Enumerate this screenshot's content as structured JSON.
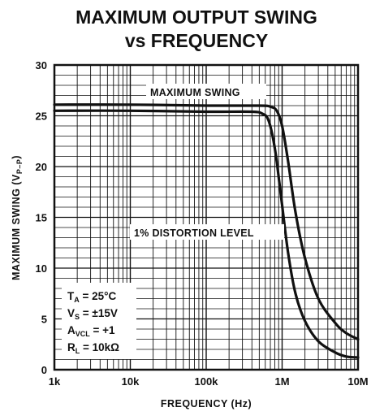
{
  "chart_data": {
    "type": "line",
    "title_line1": "MAXIMUM OUTPUT SWING",
    "title_line2": "vs FREQUENCY",
    "xlabel": "FREQUENCY (Hz)",
    "ylabel_main": "MAXIMUM SWING (V",
    "ylabel_sub": "P–P",
    "ylabel_close": ")",
    "x_scale": "log",
    "xlim": [
      1000,
      10000000
    ],
    "ylim": [
      0,
      30
    ],
    "x_ticks": [
      {
        "value": 1000,
        "label": "1k"
      },
      {
        "value": 10000,
        "label": "10k"
      },
      {
        "value": 100000,
        "label": "100k"
      },
      {
        "value": 1000000,
        "label": "1M"
      },
      {
        "value": 10000000,
        "label": "10M"
      }
    ],
    "y_ticks": [
      {
        "value": 0,
        "label": "0"
      },
      {
        "value": 5,
        "label": "5"
      },
      {
        "value": 10,
        "label": "10"
      },
      {
        "value": 15,
        "label": "15"
      },
      {
        "value": 20,
        "label": "20"
      },
      {
        "value": 25,
        "label": "25"
      },
      {
        "value": 30,
        "label": "30"
      }
    ],
    "grid": true,
    "series": [
      {
        "name": "MAXIMUM SWING",
        "x": [
          1000,
          10000,
          100000,
          500000,
          700000,
          850000,
          1000000,
          1200000,
          1500000,
          2000000,
          3000000,
          5000000,
          7000000,
          10000000
        ],
        "y": [
          26.1,
          26.1,
          26.0,
          26.0,
          25.9,
          25.5,
          24.0,
          20.5,
          15.5,
          11.0,
          7.0,
          4.6,
          3.6,
          3.0
        ]
      },
      {
        "name": "1% DISTORTION LEVEL",
        "x": [
          1000,
          10000,
          100000,
          400000,
          550000,
          650000,
          750000,
          850000,
          1000000,
          1200000,
          1500000,
          2000000,
          3000000,
          5000000,
          7000000,
          10000000
        ],
        "y": [
          25.5,
          25.5,
          25.4,
          25.4,
          25.2,
          24.7,
          23.0,
          20.5,
          16.2,
          11.5,
          7.5,
          4.8,
          2.8,
          1.7,
          1.3,
          1.2
        ]
      }
    ],
    "annotations": [
      {
        "text": "MAXIMUM SWING"
      },
      {
        "text": "1% DISTORTION LEVEL"
      }
    ],
    "conditions": [
      {
        "main": "T",
        "sub": "A",
        "rest": " = 25°C"
      },
      {
        "main": "V",
        "sub": "S",
        "rest": " = ±15V"
      },
      {
        "main": "A",
        "sub": "VCL",
        "rest": " = +1"
      },
      {
        "main": "R",
        "sub": "L",
        "rest": " = 10kΩ"
      }
    ]
  }
}
